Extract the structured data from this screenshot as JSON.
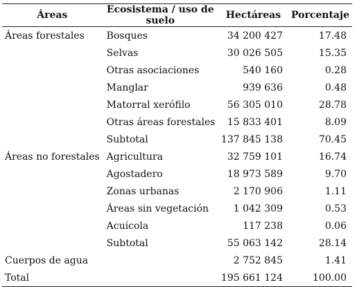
{
  "table": {
    "headers": {
      "area": "Áreas",
      "ecosystem": "Ecosistema / uso de suelo",
      "hectares": "Hectáreas",
      "percent": "Porcentaje"
    },
    "rows": [
      {
        "area": "Áreas forestales",
        "ecosystem": "Bosques",
        "hectares": "34 200 427",
        "percent": "17.48"
      },
      {
        "area": "",
        "ecosystem": "Selvas",
        "hectares": "30 026 505",
        "percent": "15.35"
      },
      {
        "area": "",
        "ecosystem": "Otras asociaciones",
        "hectares": "540 160",
        "percent": "0.28"
      },
      {
        "area": "",
        "ecosystem": "Manglar",
        "hectares": "939 636",
        "percent": "0.48"
      },
      {
        "area": "",
        "ecosystem": "Matorral xerófilo",
        "hectares": "56 305 010",
        "percent": "28.78"
      },
      {
        "area": "",
        "ecosystem": "Otras áreas forestales",
        "hectares": "15 833 401",
        "percent": "8.09"
      },
      {
        "area": "",
        "ecosystem": "Subtotal",
        "hectares": "137 845 138",
        "percent": "70.45"
      },
      {
        "area": "Áreas no forestales",
        "ecosystem": "Agricultura",
        "hectares": "32 759 101",
        "percent": "16.74"
      },
      {
        "area": "",
        "ecosystem": "Agostadero",
        "hectares": "18 973 589",
        "percent": "9.70"
      },
      {
        "area": "",
        "ecosystem": "Zonas urbanas",
        "hectares": "2 170 906",
        "percent": "1.11"
      },
      {
        "area": "",
        "ecosystem": "Áreas sin vegetación",
        "hectares": "1 042 309",
        "percent": "0.53"
      },
      {
        "area": "",
        "ecosystem": "Acuícola",
        "hectares": "117 238",
        "percent": "0.06"
      },
      {
        "area": "",
        "ecosystem": "Subtotal",
        "hectares": "55 063 142",
        "percent": "28.14"
      },
      {
        "area": "Cuerpos de agua",
        "ecosystem": "",
        "hectares": "2 752 845",
        "percent": "1.41"
      },
      {
        "area": "Total",
        "ecosystem": "",
        "hectares": "195 661 124",
        "percent": "100.00"
      }
    ]
  }
}
